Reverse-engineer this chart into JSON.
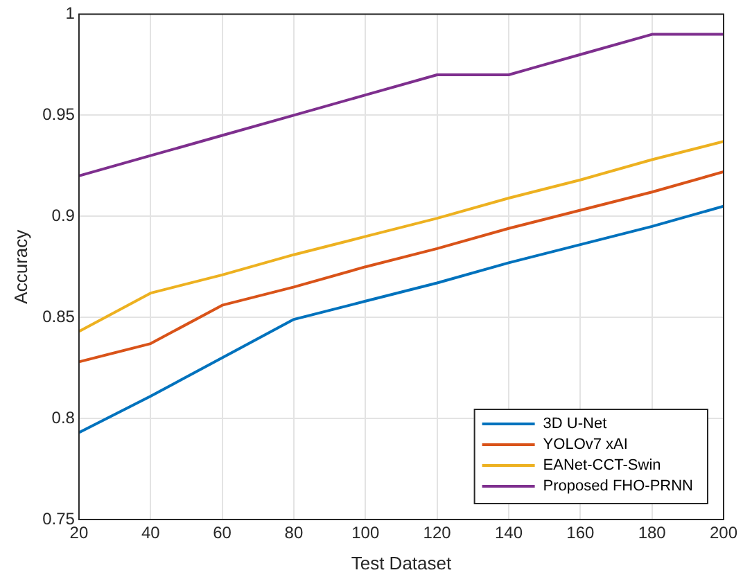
{
  "chart_data": {
    "type": "line",
    "xlabel": "Test Dataset",
    "ylabel": "Accuracy",
    "x": [
      20,
      40,
      60,
      80,
      100,
      120,
      140,
      160,
      180,
      200
    ],
    "series": [
      {
        "name": "3D U-Net",
        "color": "#0072bd",
        "values": [
          0.793,
          0.811,
          0.83,
          0.849,
          0.858,
          0.867,
          0.877,
          0.886,
          0.895,
          0.905
        ]
      },
      {
        "name": "YOLOv7 xAI",
        "color": "#d95319",
        "values": [
          0.828,
          0.837,
          0.856,
          0.865,
          0.875,
          0.884,
          0.894,
          0.903,
          0.912,
          0.922
        ]
      },
      {
        "name": "EANet-CCT-Swin",
        "color": "#edb120",
        "values": [
          0.843,
          0.862,
          0.871,
          0.881,
          0.89,
          0.899,
          0.909,
          0.918,
          0.928,
          0.937
        ]
      },
      {
        "name": "Proposed FHO-PRNN",
        "color": "#7e2f8e",
        "values": [
          0.92,
          0.93,
          0.94,
          0.95,
          0.96,
          0.97,
          0.97,
          0.98,
          0.99,
          0.99
        ]
      }
    ],
    "xlim": [
      20,
      200
    ],
    "xticks": [
      20,
      40,
      60,
      80,
      100,
      120,
      140,
      160,
      180,
      200
    ],
    "ylim": [
      0.75,
      1
    ],
    "yticks": [
      0.75,
      0.8,
      0.85,
      0.9,
      0.95,
      1
    ],
    "grid": true,
    "legend": "bottom right",
    "marker": "none",
    "line_style": "solid"
  }
}
